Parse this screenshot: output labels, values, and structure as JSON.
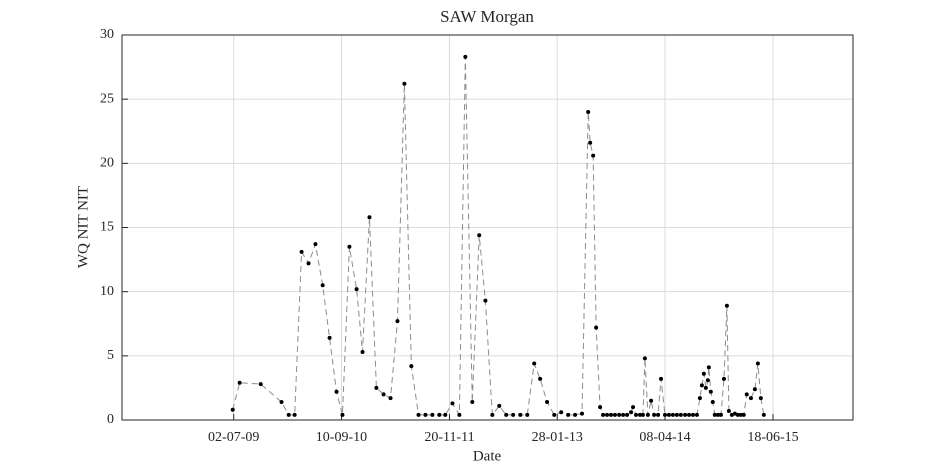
{
  "chart_data": {
    "type": "line",
    "title": "SAW Morgan",
    "x_label": "Date",
    "y_label": "WQ NIT NIT",
    "xlim": [
      "2008-04-07",
      "2016-05-06"
    ],
    "xticks": [
      {
        "value": "2009-07-02",
        "label": "02-07-09"
      },
      {
        "value": "2010-09-10",
        "label": "10-09-10"
      },
      {
        "value": "2011-11-20",
        "label": "20-11-11"
      },
      {
        "value": "2013-01-28",
        "label": "28-01-13"
      },
      {
        "value": "2014-04-08",
        "label": "08-04-14"
      },
      {
        "value": "2015-06-18",
        "label": "18-06-15"
      }
    ],
    "ylim": [
      0,
      30
    ],
    "yticks": [
      0,
      5,
      10,
      15,
      20,
      25,
      30
    ],
    "grid": true,
    "color": "#8c8c8c",
    "marker_color": "#000000",
    "x": [
      "2009-06-28",
      "2009-07-26",
      "2009-10-19",
      "2010-01-11",
      "2010-02-09",
      "2010-03-05",
      "2010-04-02",
      "2010-04-30",
      "2010-05-28",
      "2010-06-26",
      "2010-07-24",
      "2010-08-21",
      "2010-09-14",
      "2010-10-12",
      "2010-11-10",
      "2010-12-04",
      "2011-01-01",
      "2011-01-29",
      "2011-02-27",
      "2011-03-27",
      "2011-04-24",
      "2011-05-22",
      "2011-06-19",
      "2011-07-18",
      "2011-08-15",
      "2011-09-12",
      "2011-10-10",
      "2011-11-03",
      "2011-12-02",
      "2011-12-30",
      "2012-01-23",
      "2012-02-20",
      "2012-03-19",
      "2012-04-13",
      "2012-05-11",
      "2012-06-08",
      "2012-07-06",
      "2012-08-03",
      "2012-09-01",
      "2012-09-29",
      "2012-10-27",
      "2012-11-20",
      "2012-12-18",
      "2013-01-16",
      "2013-02-13",
      "2013-03-13",
      "2013-04-10",
      "2013-05-08",
      "2013-06-02",
      "2013-06-10",
      "2013-06-22",
      "2013-07-04",
      "2013-07-20",
      "2013-08-01",
      "2013-08-17",
      "2013-09-02",
      "2013-09-18",
      "2013-10-05",
      "2013-10-21",
      "2013-11-06",
      "2013-11-22",
      "2013-11-30",
      "2013-12-12",
      "2013-12-28",
      "2014-01-09",
      "2014-01-17",
      "2014-01-29",
      "2014-02-11",
      "2014-02-23",
      "2014-03-11",
      "2014-03-23",
      "2014-04-08",
      "2014-04-24",
      "2014-05-10",
      "2014-05-26",
      "2014-06-11",
      "2014-06-28",
      "2014-07-14",
      "2014-07-30",
      "2014-08-15",
      "2014-08-27",
      "2014-09-04",
      "2014-09-12",
      "2014-09-20",
      "2014-09-28",
      "2014-10-02",
      "2014-10-10",
      "2014-10-18",
      "2014-10-26",
      "2014-11-08",
      "2014-11-20",
      "2014-12-02",
      "2014-12-14",
      "2014-12-22",
      "2015-01-03",
      "2015-01-15",
      "2015-01-27",
      "2015-02-08",
      "2015-02-20",
      "2015-03-04",
      "2015-03-21",
      "2015-04-06",
      "2015-04-18",
      "2015-04-30",
      "2015-05-12"
    ],
    "values": [
      0.8,
      2.9,
      2.8,
      1.4,
      0.4,
      0.4,
      13.1,
      12.2,
      13.7,
      10.5,
      6.4,
      2.2,
      0.4,
      13.5,
      10.2,
      5.3,
      15.8,
      2.5,
      2.0,
      1.7,
      7.7,
      26.2,
      4.2,
      0.4,
      0.4,
      0.4,
      0.4,
      0.4,
      1.3,
      0.4,
      28.3,
      1.4,
      14.4,
      9.3,
      0.4,
      1.1,
      0.4,
      0.4,
      0.4,
      0.4,
      4.4,
      3.2,
      1.4,
      0.4,
      0.6,
      0.4,
      0.4,
      0.5,
      24.0,
      21.6,
      20.6,
      7.2,
      1.0,
      0.4,
      0.4,
      0.4,
      0.4,
      0.4,
      0.4,
      0.4,
      0.6,
      1.0,
      0.4,
      0.4,
      0.4,
      4.8,
      0.4,
      1.5,
      0.4,
      0.4,
      3.2,
      0.4,
      0.4,
      0.4,
      0.4,
      0.4,
      0.4,
      0.4,
      0.4,
      0.4,
      1.7,
      2.7,
      3.6,
      2.5,
      3.1,
      4.1,
      2.2,
      1.4,
      0.4,
      0.4,
      0.4,
      3.2,
      8.9,
      0.7,
      0.4,
      0.5,
      0.4,
      0.4,
      0.4,
      2.0,
      1.7,
      2.4,
      4.4,
      1.7,
      0.4
    ]
  }
}
